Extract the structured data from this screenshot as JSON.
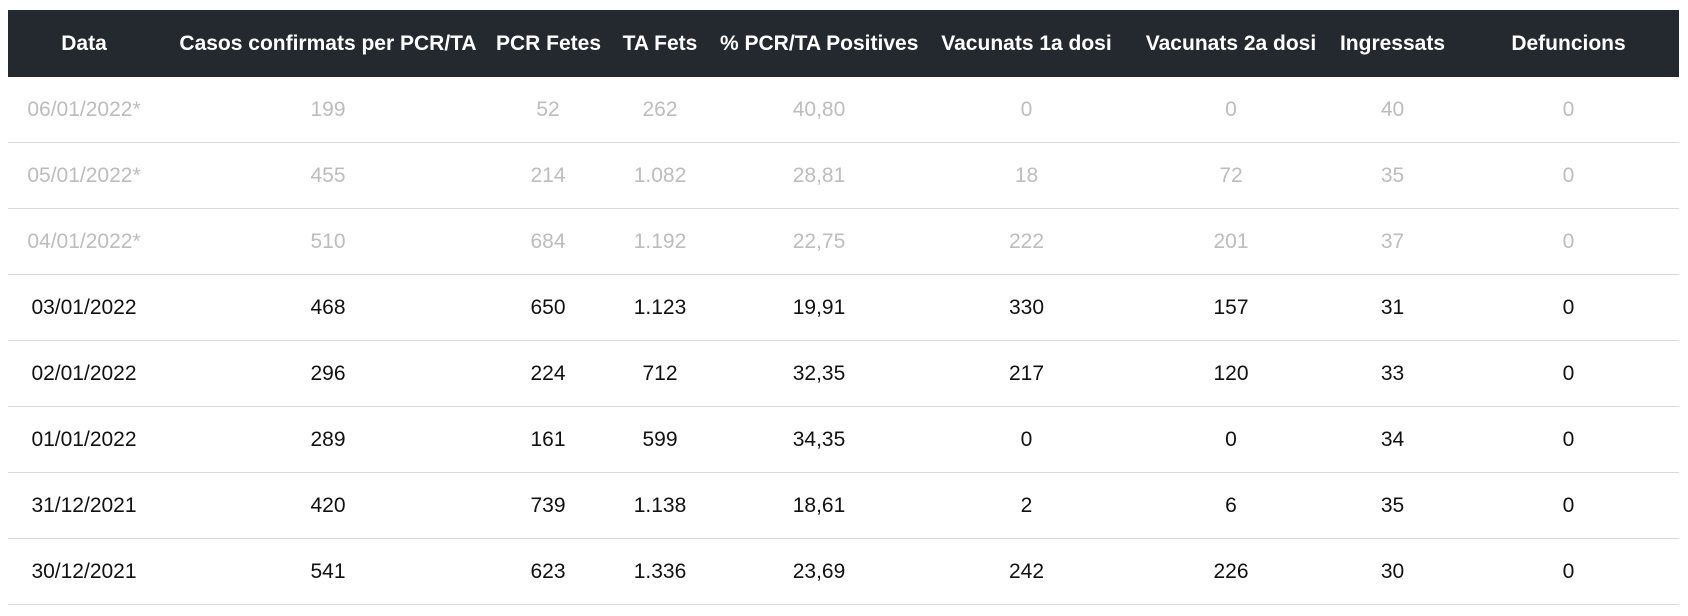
{
  "table": {
    "columns": [
      "Data",
      "Casos confirmats per PCR/TA",
      "PCR Fetes",
      "TA Fets",
      "% PCR/TA Positives",
      "Vacunats 1a dosi",
      "Vacunats 2a dosi",
      "Ingressats",
      "Defuncions"
    ],
    "rows": [
      {
        "provisional": true,
        "cells": [
          "06/01/2022*",
          "199",
          "52",
          "262",
          "40,80",
          "0",
          "0",
          "40",
          "0"
        ]
      },
      {
        "provisional": true,
        "cells": [
          "05/01/2022*",
          "455",
          "214",
          "1.082",
          "28,81",
          "18",
          "72",
          "35",
          "0"
        ]
      },
      {
        "provisional": true,
        "cells": [
          "04/01/2022*",
          "510",
          "684",
          "1.192",
          "22,75",
          "222",
          "201",
          "37",
          "0"
        ]
      },
      {
        "provisional": false,
        "cells": [
          "03/01/2022",
          "468",
          "650",
          "1.123",
          "19,91",
          "330",
          "157",
          "31",
          "0"
        ]
      },
      {
        "provisional": false,
        "cells": [
          "02/01/2022",
          "296",
          "224",
          "712",
          "32,35",
          "217",
          "120",
          "33",
          "0"
        ]
      },
      {
        "provisional": false,
        "cells": [
          "01/01/2022",
          "289",
          "161",
          "599",
          "34,35",
          "0",
          "0",
          "34",
          "0"
        ]
      },
      {
        "provisional": false,
        "cells": [
          "31/12/2021",
          "420",
          "739",
          "1.138",
          "18,61",
          "2",
          "6",
          "35",
          "0"
        ]
      },
      {
        "provisional": false,
        "cells": [
          "30/12/2021",
          "541",
          "623",
          "1.336",
          "23,69",
          "242",
          "226",
          "30",
          "0"
        ]
      }
    ]
  },
  "colors": {
    "header_background": "#23292f",
    "header_text": "#ffffff",
    "body_text": "#111111",
    "provisional_text": "#bdbdbd",
    "row_divider": "#d9d9d9"
  }
}
